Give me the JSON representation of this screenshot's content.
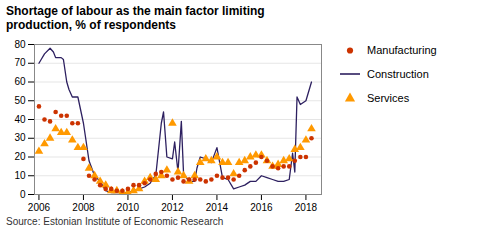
{
  "chart_data": {
    "type": "line",
    "title": "Shortage of labour as the main factor limiting\nproduction, % of respondents",
    "source": "Source: Estonian Institute of Economic Research",
    "xlim": [
      2005.8,
      2018.7
    ],
    "ylim": [
      0,
      80
    ],
    "yticks": [
      0,
      10,
      20,
      30,
      40,
      50,
      60,
      70,
      80
    ],
    "xticks": [
      2006,
      2008,
      2010,
      2012,
      2014,
      2016,
      2018
    ],
    "grid": true,
    "legend": "right",
    "series": [
      {
        "name": "Manufacturing",
        "type": "scatter",
        "marker": "circle",
        "color": "#cc3300",
        "x": [
          2006.0,
          2006.25,
          2006.5,
          2006.75,
          2007.0,
          2007.25,
          2007.5,
          2007.75,
          2008.0,
          2008.25,
          2008.5,
          2008.75,
          2009.0,
          2009.25,
          2009.5,
          2009.75,
          2010.0,
          2010.25,
          2010.5,
          2010.75,
          2011.0,
          2011.25,
          2011.5,
          2011.75,
          2012.0,
          2012.25,
          2012.5,
          2012.75,
          2013.0,
          2013.25,
          2013.5,
          2013.75,
          2014.0,
          2014.25,
          2014.5,
          2014.75,
          2015.0,
          2015.25,
          2015.5,
          2015.75,
          2016.0,
          2016.25,
          2016.5,
          2016.75,
          2017.0,
          2017.25,
          2017.5,
          2017.75,
          2018.0,
          2018.25
        ],
        "values": [
          47,
          40,
          39,
          44,
          42,
          42,
          38,
          38,
          19,
          10,
          8,
          5,
          3,
          3,
          2,
          2,
          3,
          5,
          5,
          6,
          8,
          11,
          12,
          10,
          8,
          9,
          7,
          8,
          8,
          8,
          7,
          8,
          10,
          9,
          9,
          8,
          10,
          13,
          15,
          17,
          20,
          18,
          15,
          14,
          15,
          15,
          18,
          20,
          20,
          30
        ]
      },
      {
        "name": "Construction",
        "type": "line",
        "color": "#2d2060",
        "x": [
          2006.0,
          2006.1,
          2006.25,
          2006.5,
          2006.65,
          2006.75,
          2007.0,
          2007.1,
          2007.25,
          2007.35,
          2007.5,
          2007.75,
          2008.0,
          2008.25,
          2008.5,
          2008.75,
          2009.0,
          2009.25,
          2009.5,
          2009.75,
          2010.0,
          2010.25,
          2010.5,
          2010.75,
          2011.0,
          2011.1,
          2011.25,
          2011.5,
          2011.6,
          2011.75,
          2012.0,
          2012.1,
          2012.25,
          2012.4,
          2012.5,
          2012.75,
          2013.0,
          2013.1,
          2013.25,
          2013.5,
          2013.75,
          2014.0,
          2014.25,
          2014.5,
          2014.75,
          2015.0,
          2015.25,
          2015.5,
          2015.75,
          2016.0,
          2016.25,
          2016.5,
          2016.75,
          2017.0,
          2017.25,
          2017.4,
          2017.5,
          2017.6,
          2017.75,
          2018.0,
          2018.25
        ],
        "values": [
          70,
          72,
          75,
          78,
          76,
          73,
          73,
          72,
          60,
          56,
          52,
          52,
          38,
          18,
          10,
          7,
          2,
          1,
          1,
          1,
          1,
          2,
          3,
          4,
          6,
          8,
          10,
          38,
          44,
          20,
          19,
          28,
          12,
          39,
          11,
          7,
          7,
          14,
          20,
          19,
          17,
          25,
          9,
          8,
          3,
          4,
          5,
          7,
          7,
          10,
          9,
          8,
          7,
          7,
          8,
          22,
          12,
          52,
          48,
          50,
          60
        ]
      },
      {
        "name": "Services",
        "type": "scatter",
        "marker": "triangle",
        "color": "#ff9900",
        "x": [
          2006.0,
          2006.25,
          2006.5,
          2006.75,
          2007.0,
          2007.25,
          2007.5,
          2007.75,
          2008.0,
          2008.25,
          2008.5,
          2008.75,
          2009.0,
          2009.25,
          2009.5,
          2009.75,
          2010.0,
          2010.25,
          2010.5,
          2010.75,
          2011.0,
          2011.25,
          2011.5,
          2011.75,
          2012.0,
          2012.25,
          2012.5,
          2012.75,
          2013.0,
          2013.25,
          2013.5,
          2013.75,
          2014.0,
          2014.25,
          2014.5,
          2014.75,
          2015.0,
          2015.25,
          2015.5,
          2015.75,
          2016.0,
          2016.25,
          2016.5,
          2016.75,
          2017.0,
          2017.25,
          2017.5,
          2017.75,
          2018.0,
          2018.25
        ],
        "values": [
          23,
          27,
          30,
          35,
          33,
          33,
          29,
          25,
          25,
          14,
          10,
          7,
          5,
          2,
          2,
          1,
          1,
          2,
          3,
          7,
          9,
          8,
          10,
          13,
          38,
          12,
          10,
          7,
          10,
          17,
          19,
          18,
          20,
          17,
          17,
          11,
          17,
          18,
          20,
          21,
          21,
          18,
          15,
          16,
          18,
          19,
          24,
          25,
          29,
          35
        ]
      }
    ]
  }
}
